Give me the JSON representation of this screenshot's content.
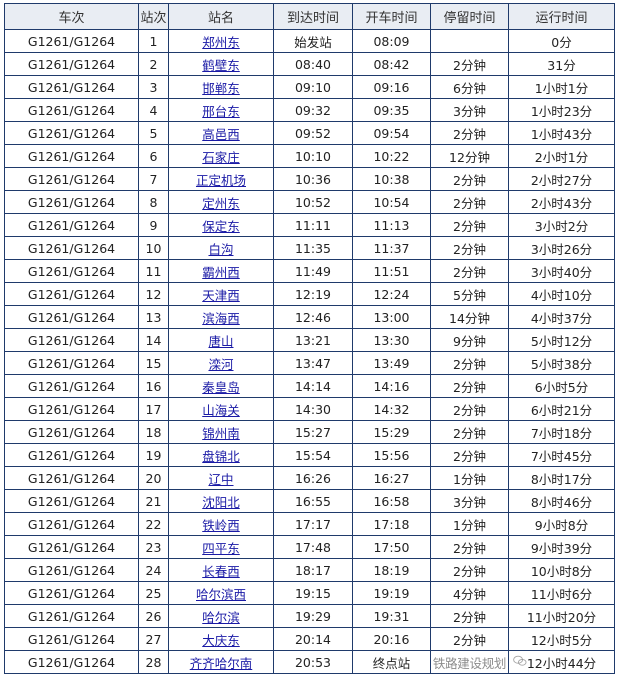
{
  "headers": [
    "车次",
    "站次",
    "站名",
    "到达时间",
    "开车时间",
    "停留时间",
    "运行时间"
  ],
  "rows": [
    [
      "G1261/G1264",
      "1",
      "郑州东",
      "始发站",
      "08:09",
      "",
      "0分"
    ],
    [
      "G1261/G1264",
      "2",
      "鹤壁东",
      "08:40",
      "08:42",
      "2分钟",
      "31分"
    ],
    [
      "G1261/G1264",
      "3",
      "邯郸东",
      "09:10",
      "09:16",
      "6分钟",
      "1小时1分"
    ],
    [
      "G1261/G1264",
      "4",
      "邢台东",
      "09:32",
      "09:35",
      "3分钟",
      "1小时23分"
    ],
    [
      "G1261/G1264",
      "5",
      "高邑西",
      "09:52",
      "09:54",
      "2分钟",
      "1小时43分"
    ],
    [
      "G1261/G1264",
      "6",
      "石家庄",
      "10:10",
      "10:22",
      "12分钟",
      "2小时1分"
    ],
    [
      "G1261/G1264",
      "7",
      "正定机场",
      "10:36",
      "10:38",
      "2分钟",
      "2小时27分"
    ],
    [
      "G1261/G1264",
      "8",
      "定州东",
      "10:52",
      "10:54",
      "2分钟",
      "2小时43分"
    ],
    [
      "G1261/G1264",
      "9",
      "保定东",
      "11:11",
      "11:13",
      "2分钟",
      "3小时2分"
    ],
    [
      "G1261/G1264",
      "10",
      "白沟",
      "11:35",
      "11:37",
      "2分钟",
      "3小时26分"
    ],
    [
      "G1261/G1264",
      "11",
      "霸州西",
      "11:49",
      "11:51",
      "2分钟",
      "3小时40分"
    ],
    [
      "G1261/G1264",
      "12",
      "天津西",
      "12:19",
      "12:24",
      "5分钟",
      "4小时10分"
    ],
    [
      "G1261/G1264",
      "13",
      "滨海西",
      "12:46",
      "13:00",
      "14分钟",
      "4小时37分"
    ],
    [
      "G1261/G1264",
      "14",
      "唐山",
      "13:21",
      "13:30",
      "9分钟",
      "5小时12分"
    ],
    [
      "G1261/G1264",
      "15",
      "滦河",
      "13:47",
      "13:49",
      "2分钟",
      "5小时38分"
    ],
    [
      "G1261/G1264",
      "16",
      "秦皇岛",
      "14:14",
      "14:16",
      "2分钟",
      "6小时5分"
    ],
    [
      "G1261/G1264",
      "17",
      "山海关",
      "14:30",
      "14:32",
      "2分钟",
      "6小时21分"
    ],
    [
      "G1261/G1264",
      "18",
      "锦州南",
      "15:27",
      "15:29",
      "2分钟",
      "7小时18分"
    ],
    [
      "G1261/G1264",
      "19",
      "盘锦北",
      "15:54",
      "15:56",
      "2分钟",
      "7小时45分"
    ],
    [
      "G1261/G1264",
      "20",
      "辽中",
      "16:26",
      "16:27",
      "1分钟",
      "8小时17分"
    ],
    [
      "G1261/G1264",
      "21",
      "沈阳北",
      "16:55",
      "16:58",
      "3分钟",
      "8小时46分"
    ],
    [
      "G1261/G1264",
      "22",
      "铁岭西",
      "17:17",
      "17:18",
      "1分钟",
      "9小时8分"
    ],
    [
      "G1261/G1264",
      "23",
      "四平东",
      "17:48",
      "17:50",
      "2分钟",
      "9小时39分"
    ],
    [
      "G1261/G1264",
      "24",
      "长春西",
      "18:17",
      "18:19",
      "2分钟",
      "10小时8分"
    ],
    [
      "G1261/G1264",
      "25",
      "哈尔滨西",
      "19:15",
      "19:19",
      "4分钟",
      "11小时6分"
    ],
    [
      "G1261/G1264",
      "26",
      "哈尔滨",
      "19:29",
      "19:31",
      "2分钟",
      "11小时20分"
    ],
    [
      "G1261/G1264",
      "27",
      "大庆东",
      "20:14",
      "20:16",
      "2分钟",
      "12小时5分"
    ],
    [
      "G1261/G1264",
      "28",
      "齐齐哈尔南",
      "20:53",
      "终点站",
      "",
      "12小时44分"
    ]
  ],
  "watermark": {
    "text": "铁路建设规划",
    "icon": "wechat-icon"
  },
  "colors": {
    "border": "#1f3a6b",
    "header_bg": "#e9edf3",
    "link": "#1a1aa6"
  }
}
